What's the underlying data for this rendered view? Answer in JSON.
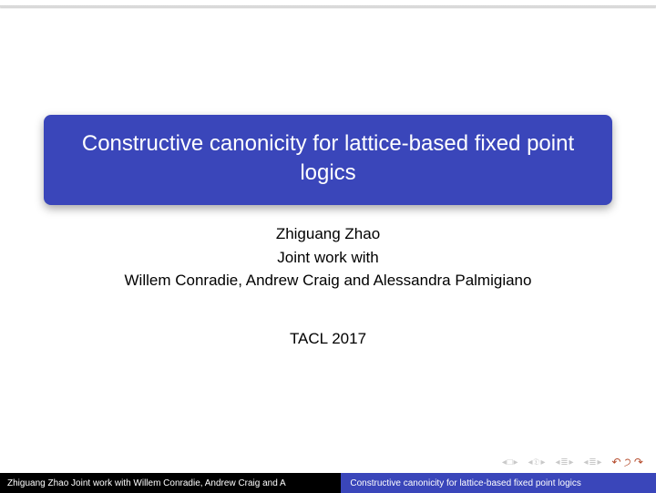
{
  "colors": {
    "accent": "#3a46ba",
    "footer_left_bg": "#000000",
    "nav_icon": "#c9c9c9",
    "nav_undo": "#b44a2a",
    "page_bg": "#ffffff",
    "text": "#000000",
    "title_text": "#ffffff"
  },
  "title": "Constructive canonicity for lattice-based fixed point logics",
  "author_lines": {
    "line1": "Zhiguang Zhao",
    "line2": "Joint work with",
    "line3": "Willem Conradie, Andrew Craig and Alessandra Palmigiano"
  },
  "venue": "TACL 2017",
  "footer": {
    "left": "Zhiguang Zhao Joint work with Willem Conradie, Andrew Craig and A",
    "right": "Constructive canonicity for lattice-based fixed point logics"
  },
  "nav": {
    "first": "◂ □ ▸",
    "prev": "◂ 𝔇 ▸",
    "back": "◂ ≣ ▸",
    "fwd": "◂ ≣ ▸",
    "undo": "↶ ੭ ↷"
  },
  "fontsize": {
    "title": 24,
    "body": 17,
    "footer": 10,
    "nav": 10
  }
}
